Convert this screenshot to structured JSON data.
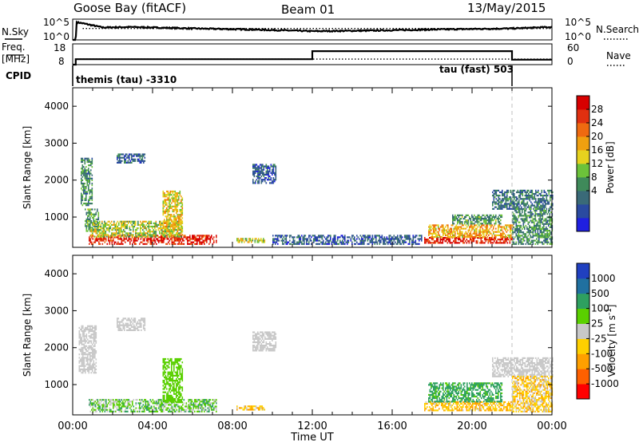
{
  "header": {
    "site": "Goose Bay (fitACF)",
    "beam": "Beam 01",
    "date": "13/May/2015"
  },
  "noise_panel": {
    "left_label": "N.Sky",
    "left_ticks": [
      "10^5",
      "10^0"
    ],
    "right_ticks": [
      "10^5",
      "10^0"
    ],
    "right_label": "N.Search"
  },
  "freq_panel": {
    "left_label_1": "Freq.",
    "left_label_2": "[MHz]",
    "left_ticks": [
      "18",
      "8"
    ],
    "right_ticks": [
      "60",
      "0"
    ],
    "right_label": "Nave"
  },
  "cpid_panel": {
    "label": "CPID",
    "segments": [
      "themis (tau) -3310",
      "tau (fast) 503"
    ]
  },
  "time_axis": {
    "xlabel": "Time UT"
  },
  "chart_data": [
    {
      "type": "line",
      "name": "noise",
      "series": [
        {
          "name": "N.Sky",
          "style": "solid",
          "t_hours": [
            0,
            0.15,
            0.2,
            0.5,
            1.5,
            3,
            6,
            9,
            12,
            15,
            18,
            22,
            24
          ],
          "level": [
            0.0,
            0.0,
            0.85,
            0.8,
            0.6,
            0.62,
            0.55,
            0.5,
            0.42,
            0.45,
            0.5,
            0.55,
            0.62
          ]
        },
        {
          "name": "N.Search",
          "style": "dotted",
          "t_hours": [
            0,
            24
          ],
          "level": [
            0.55,
            0.55
          ]
        }
      ]
    },
    {
      "type": "line",
      "name": "frequency",
      "series": [
        {
          "name": "Freq",
          "style": "solid",
          "t_hours": [
            0,
            0.15,
            0.15,
            12,
            12,
            22,
            22,
            24
          ],
          "mhz": [
            8,
            8,
            10.6,
            10.6,
            14.5,
            14.5,
            10.4,
            10.4
          ]
        },
        {
          "name": "Nave",
          "style": "dotted",
          "t_hours": [
            0,
            24
          ],
          "nave": [
            16,
            16
          ]
        }
      ]
    },
    {
      "type": "heatmap",
      "name": "power",
      "xlabel": "Time UT",
      "ylabel": "Slant Range [km]",
      "xticks": [
        "00:00",
        "04:00",
        "08:00",
        "12:00",
        "16:00",
        "20:00",
        "00:00"
      ],
      "xlim_hours": [
        0,
        24
      ],
      "ylim_km": [
        180,
        4500
      ],
      "yticks": [
        1000,
        2000,
        3000,
        4000
      ],
      "colorbar": {
        "label": "Power [dB]",
        "ticks": [
          "28",
          "24",
          "20",
          "16",
          "12",
          "8",
          "4"
        ],
        "colors": [
          "#1f1fe0",
          "#2a4aa0",
          "#3a6a78",
          "#3f8a5a",
          "#6cc23a",
          "#e6d21e",
          "#f0a010",
          "#ef6a10",
          "#e03010",
          "#d80000"
        ]
      },
      "regions": [
        {
          "t": [
            0.4,
            1.0
          ],
          "r": [
            1300,
            2600
          ],
          "v": 10
        },
        {
          "t": [
            0.6,
            1.3
          ],
          "r": [
            600,
            1200
          ],
          "v": 11
        },
        {
          "t": [
            0.8,
            7.2
          ],
          "r": [
            250,
            480
          ],
          "v": 27
        },
        {
          "t": [
            0.9,
            5.5
          ],
          "r": [
            450,
            900
          ],
          "v": 15
        },
        {
          "t": [
            2.2,
            3.6
          ],
          "r": [
            2450,
            2700
          ],
          "v": 6
        },
        {
          "t": [
            4.5,
            5.5
          ],
          "r": [
            500,
            1700
          ],
          "v": 17
        },
        {
          "t": [
            8.2,
            9.6
          ],
          "r": [
            300,
            420
          ],
          "v": 16
        },
        {
          "t": [
            9.0,
            10.2
          ],
          "r": [
            1900,
            2400
          ],
          "v": 6
        },
        {
          "t": [
            10.0,
            17.5
          ],
          "r": [
            250,
            500
          ],
          "v": 6
        },
        {
          "t": [
            17.6,
            22.0
          ],
          "r": [
            280,
            460
          ],
          "v": 27
        },
        {
          "t": [
            17.8,
            22.0
          ],
          "r": [
            440,
            800
          ],
          "v": 19
        },
        {
          "t": [
            19.0,
            21.5
          ],
          "r": [
            800,
            1050
          ],
          "v": 11
        },
        {
          "t": [
            21.0,
            24.0
          ],
          "r": [
            1200,
            1700
          ],
          "v": 8
        },
        {
          "t": [
            22.0,
            24.0
          ],
          "r": [
            250,
            1200
          ],
          "v": 10
        }
      ]
    },
    {
      "type": "heatmap",
      "name": "velocity",
      "xlabel": "Time UT",
      "ylabel": "Slant Range [km]",
      "xticks": [
        "00:00",
        "04:00",
        "08:00",
        "12:00",
        "16:00",
        "20:00",
        "00:00"
      ],
      "xlim_hours": [
        0,
        24
      ],
      "ylim_km": [
        180,
        4500
      ],
      "yticks": [
        1000,
        2000,
        3000,
        4000
      ],
      "colorbar": {
        "label": "Velocity [m s^-1]",
        "ticks": [
          "1000",
          "500",
          "100",
          "25",
          "-25",
          "-100",
          "-500",
          "-1000"
        ],
        "colors": [
          "#ff0000",
          "#ff6000",
          "#ffa000",
          "#ffd000",
          "#c8c8c8",
          "#5ad000",
          "#2ea060",
          "#2070a0",
          "#2040c0"
        ]
      },
      "regions": [
        {
          "t": [
            0.3,
            1.2
          ],
          "r": [
            1300,
            2600
          ],
          "v": 0
        },
        {
          "t": [
            0.8,
            7.2
          ],
          "r": [
            250,
            600
          ],
          "v": 60
        },
        {
          "t": [
            2.2,
            3.6
          ],
          "r": [
            2450,
            2800
          ],
          "v": 0
        },
        {
          "t": [
            4.5,
            5.5
          ],
          "r": [
            500,
            1700
          ],
          "v": 40
        },
        {
          "t": [
            8.2,
            9.6
          ],
          "r": [
            300,
            420
          ],
          "v": -80
        },
        {
          "t": [
            9.0,
            10.2
          ],
          "r": [
            1900,
            2400
          ],
          "v": 0
        },
        {
          "t": [
            17.6,
            22.0
          ],
          "r": [
            280,
            520
          ],
          "v": -90
        },
        {
          "t": [
            17.8,
            21.5
          ],
          "r": [
            520,
            1050
          ],
          "v": 150
        },
        {
          "t": [
            21.0,
            24.0
          ],
          "r": [
            1200,
            1700
          ],
          "v": 0
        },
        {
          "t": [
            22.0,
            24.0
          ],
          "r": [
            250,
            1200
          ],
          "v": -60
        }
      ]
    }
  ]
}
